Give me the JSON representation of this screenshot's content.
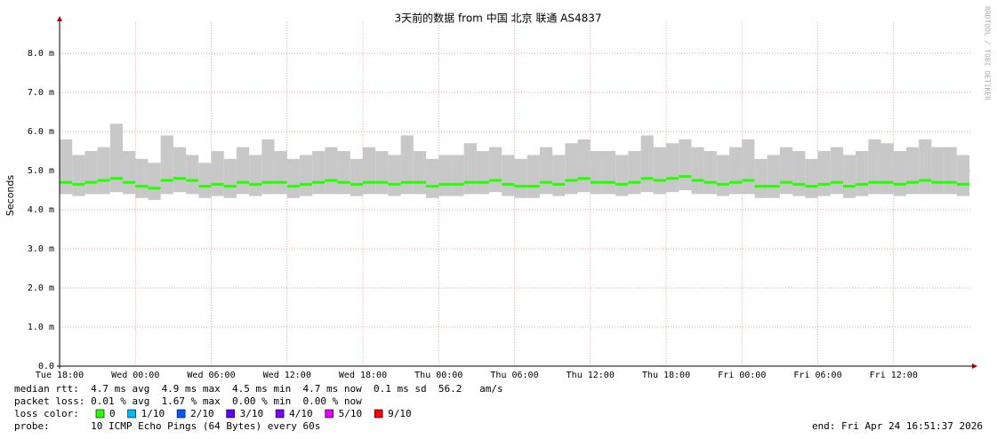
{
  "chart_data": {
    "type": "smokeping",
    "title": "3天前的数据 from  中国 北京 联通 AS4837",
    "ylabel": "Seconds",
    "watermark": "RRDTOOL / TOBI OETIKER",
    "xlim": [
      0,
      72
    ],
    "xticks": [
      {
        "value": 0,
        "label": "Tue 18:00"
      },
      {
        "value": 6,
        "label": "Wed 00:00"
      },
      {
        "value": 12,
        "label": "Wed 06:00"
      },
      {
        "value": 18,
        "label": "Wed 12:00"
      },
      {
        "value": 24,
        "label": "Wed 18:00"
      },
      {
        "value": 30,
        "label": "Thu 00:00"
      },
      {
        "value": 36,
        "label": "Thu 06:00"
      },
      {
        "value": 42,
        "label": "Thu 12:00"
      },
      {
        "value": 48,
        "label": "Thu 18:00"
      },
      {
        "value": 54,
        "label": "Fri 00:00"
      },
      {
        "value": 60,
        "label": "Fri 06:00"
      },
      {
        "value": 66,
        "label": "Fri 12:00"
      }
    ],
    "ylim": [
      0,
      8.8
    ],
    "yticks": [
      {
        "value": 0,
        "label": "0.0"
      },
      {
        "value": 1,
        "label": "1.0 m"
      },
      {
        "value": 2,
        "label": "2.0 m"
      },
      {
        "value": 3,
        "label": "3.0 m"
      },
      {
        "value": 4,
        "label": "4.0 m"
      },
      {
        "value": 5,
        "label": "5.0 m"
      },
      {
        "value": 6,
        "label": "6.0 m"
      },
      {
        "value": 7,
        "label": "7.0 m"
      },
      {
        "value": 8,
        "label": "8.0 m"
      }
    ],
    "grid": true,
    "x": [
      0.5,
      1.5,
      2.5,
      3.5,
      4.5,
      5.5,
      6.5,
      7.5,
      8.5,
      9.5,
      10.5,
      11.5,
      12.5,
      13.5,
      14.5,
      15.5,
      16.5,
      17.5,
      18.5,
      19.5,
      20.5,
      21.5,
      22.5,
      23.5,
      24.5,
      25.5,
      26.5,
      27.5,
      28.5,
      29.5,
      30.5,
      31.5,
      32.5,
      33.5,
      34.5,
      35.5,
      36.5,
      37.5,
      38.5,
      39.5,
      40.5,
      41.5,
      42.5,
      43.5,
      44.5,
      45.5,
      46.5,
      47.5,
      48.5,
      49.5,
      50.5,
      51.5,
      52.5,
      53.5,
      54.5,
      55.5,
      56.5,
      57.5,
      58.5,
      59.5,
      60.5,
      61.5,
      62.5,
      63.5,
      64.5,
      65.5,
      66.5,
      67.5,
      68.5,
      69.5,
      70.5,
      71.5
    ],
    "median": {
      "color": "#26ff00",
      "values": [
        4.7,
        4.65,
        4.7,
        4.75,
        4.8,
        4.7,
        4.6,
        4.55,
        4.75,
        4.8,
        4.75,
        4.6,
        4.65,
        4.6,
        4.7,
        4.65,
        4.7,
        4.7,
        4.6,
        4.65,
        4.7,
        4.75,
        4.7,
        4.65,
        4.7,
        4.7,
        4.65,
        4.7,
        4.7,
        4.6,
        4.65,
        4.65,
        4.7,
        4.7,
        4.75,
        4.65,
        4.6,
        4.6,
        4.7,
        4.65,
        4.75,
        4.8,
        4.7,
        4.7,
        4.65,
        4.7,
        4.8,
        4.75,
        4.8,
        4.85,
        4.75,
        4.7,
        4.65,
        4.7,
        4.75,
        4.6,
        4.6,
        4.7,
        4.65,
        4.6,
        4.65,
        4.7,
        4.6,
        4.65,
        4.7,
        4.7,
        4.65,
        4.7,
        4.75,
        4.7,
        4.7,
        4.65
      ]
    },
    "smoke_min": [
      4.4,
      4.35,
      4.4,
      4.4,
      4.45,
      4.4,
      4.3,
      4.25,
      4.4,
      4.45,
      4.4,
      4.3,
      4.35,
      4.3,
      4.4,
      4.35,
      4.4,
      4.4,
      4.3,
      4.35,
      4.4,
      4.4,
      4.4,
      4.35,
      4.4,
      4.4,
      4.35,
      4.4,
      4.4,
      4.3,
      4.35,
      4.35,
      4.4,
      4.4,
      4.45,
      4.35,
      4.3,
      4.3,
      4.4,
      4.35,
      4.4,
      4.45,
      4.4,
      4.4,
      4.35,
      4.4,
      4.45,
      4.4,
      4.45,
      4.5,
      4.4,
      4.4,
      4.35,
      4.4,
      4.4,
      4.3,
      4.3,
      4.4,
      4.35,
      4.3,
      4.35,
      4.4,
      4.3,
      4.35,
      4.4,
      4.4,
      4.35,
      4.4,
      4.4,
      4.4,
      4.4,
      4.35
    ],
    "smoke_max": [
      5.8,
      5.4,
      5.5,
      5.6,
      6.2,
      5.5,
      5.3,
      5.2,
      5.9,
      5.6,
      5.4,
      5.2,
      5.5,
      5.3,
      5.6,
      5.4,
      5.8,
      5.5,
      5.3,
      5.4,
      5.5,
      5.6,
      5.5,
      5.3,
      5.6,
      5.5,
      5.4,
      5.9,
      5.5,
      5.3,
      5.4,
      5.4,
      5.7,
      5.5,
      5.6,
      5.4,
      5.3,
      5.4,
      5.6,
      5.4,
      5.7,
      5.8,
      5.5,
      5.5,
      5.4,
      5.5,
      5.9,
      5.6,
      5.7,
      5.8,
      5.6,
      5.5,
      5.4,
      5.6,
      5.8,
      5.3,
      5.4,
      5.6,
      5.5,
      5.3,
      5.5,
      5.6,
      5.4,
      5.5,
      5.8,
      5.7,
      5.5,
      5.6,
      5.8,
      5.6,
      5.6,
      5.4
    ],
    "smoke_color": "#c8c8c8",
    "stats": [
      "median rtt:  4.7 ms avg  4.9 ms max  4.5 ms min  4.7 ms now  0.1 ms sd  56.2   am/s",
      "packet loss: 0.01 % avg  1.67 % max  0.00 % min  0.00 % now"
    ],
    "loss_legend": {
      "label": "loss color:",
      "items": [
        {
          "label": "0",
          "color": "#26ff00"
        },
        {
          "label": "1/10",
          "color": "#00b8ff"
        },
        {
          "label": "2/10",
          "color": "#0059ff"
        },
        {
          "label": "3/10",
          "color": "#5e00ff"
        },
        {
          "label": "4/10",
          "color": "#7e00ff"
        },
        {
          "label": "5/10",
          "color": "#dd00ff"
        },
        {
          "label": "9/10",
          "color": "#ff0000"
        }
      ]
    },
    "probe": "probe:       10 ICMP Echo Pings (64 Bytes) every 60s",
    "end": "end: Fri Apr 24 16:51:37 2026"
  }
}
